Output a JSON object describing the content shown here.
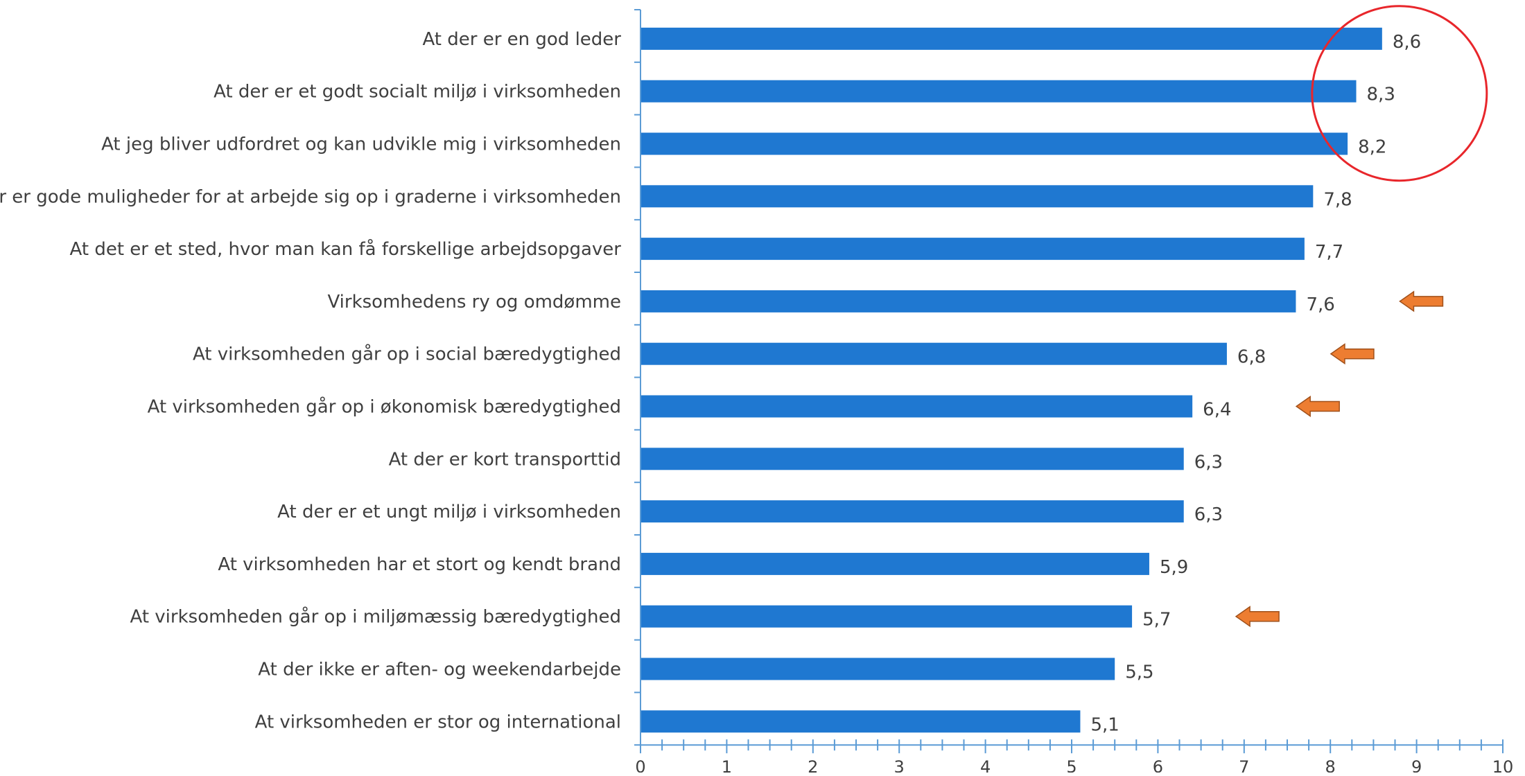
{
  "chart_data": {
    "type": "bar",
    "orientation": "horizontal",
    "title": "",
    "xlabel": "",
    "ylabel": "",
    "xlim": [
      0,
      10
    ],
    "x_ticks": [
      0,
      1,
      2,
      3,
      4,
      5,
      6,
      7,
      8,
      9,
      10
    ],
    "minor_ticks_per_unit": 4,
    "grid": false,
    "legend": "none",
    "bar_color": "#1f78d1",
    "axis_color": "#5b9bd5",
    "decimal_separator": ",",
    "categories": [
      "At der er en god leder",
      "At der er et godt socialt miljø i virksomheden",
      "At jeg bliver udfordret og kan udvikle mig i virksomheden",
      "At der er gode muligheder for at arbejde sig op i graderne i virksomheden",
      "At det er et sted, hvor man kan få forskellige arbejdsopgaver",
      "Virksomhedens ry og omdømme",
      "At virksomheden går op i social bæredygtighed",
      "At virksomheden går op i økonomisk bæredygtighed",
      "At der er kort transporttid",
      "At der er et ungt miljø i virksomheden",
      "At virksomheden har et stort og kendt brand",
      "At virksomheden går op i miljømæssig bæredygtighed",
      "At der ikke er aften- og weekendarbejde",
      "At virksomheden er stor og international"
    ],
    "values": [
      8.6,
      8.3,
      8.2,
      7.8,
      7.7,
      7.6,
      6.8,
      6.4,
      6.3,
      6.3,
      5.9,
      5.7,
      5.5,
      5.1
    ],
    "value_labels": [
      "8,6",
      "8,3",
      "8,2",
      "7,8",
      "7,7",
      "7,6",
      "6,8",
      "6,4",
      "6,3",
      "6,3",
      "5,9",
      "5,7",
      "5,5",
      "5,1"
    ],
    "annotations": [
      {
        "type": "circle",
        "color": "#e8262b",
        "highlights": [
          "At der er en god leder",
          "At der er et godt socialt miljø i virksomheden",
          "At jeg bliver udfordret og kan udvikle mig i virksomheden"
        ]
      },
      {
        "type": "arrow",
        "direction": "left",
        "color": "#ed7d31",
        "stroke": "#a0501a",
        "points_to": "Virksomhedens ry og omdømme"
      },
      {
        "type": "arrow",
        "direction": "left",
        "color": "#ed7d31",
        "stroke": "#a0501a",
        "points_to": "At virksomheden går op i social bæredygtighed"
      },
      {
        "type": "arrow",
        "direction": "left",
        "color": "#ed7d31",
        "stroke": "#a0501a",
        "points_to": "At virksomheden går op i økonomisk bæredygtighed"
      },
      {
        "type": "arrow",
        "direction": "left",
        "color": "#ed7d31",
        "stroke": "#a0501a",
        "points_to": "At virksomheden går op i miljømæssig bæredygtighed"
      }
    ]
  }
}
